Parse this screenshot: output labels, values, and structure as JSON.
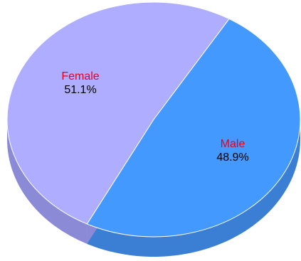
{
  "chart_data": {
    "type": "pie",
    "title": "",
    "slices": [
      {
        "label": "Female",
        "value": 51.1,
        "value_label": "51.1%",
        "color": "#aeadff",
        "side_color": "#8b8ad6"
      },
      {
        "label": "Male",
        "value": 48.9,
        "value_label": "48.9%",
        "color": "#4499ff",
        "side_color": "#3a7fd4"
      }
    ],
    "label_color": "#e8001c",
    "style": "3d"
  }
}
